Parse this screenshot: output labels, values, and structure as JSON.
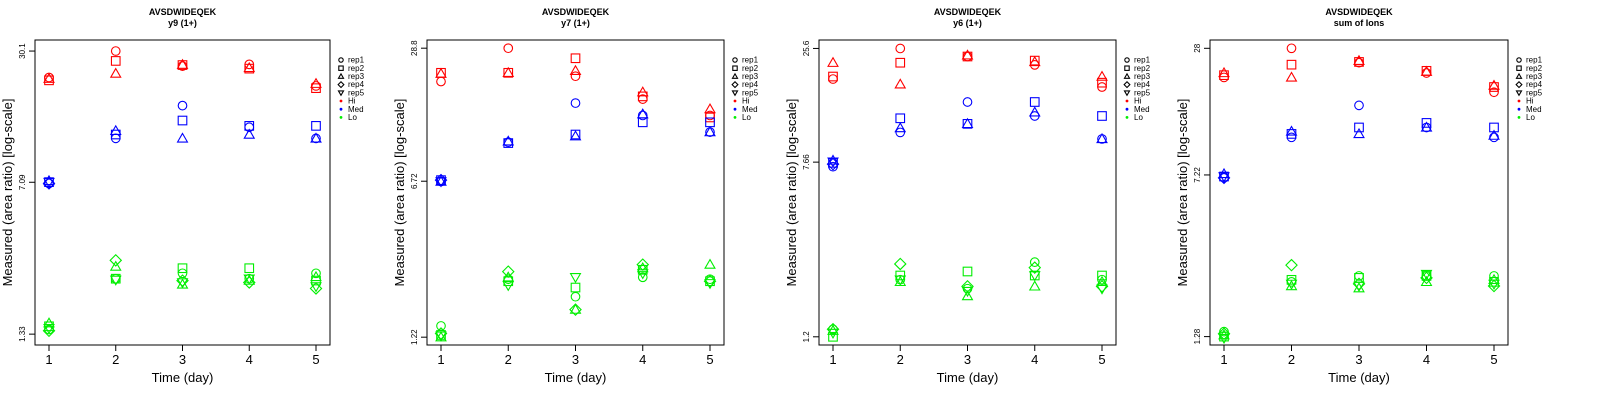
{
  "legend_entries": [
    {
      "label": "rep1",
      "symbol": "circle"
    },
    {
      "label": "rep2",
      "symbol": "square"
    },
    {
      "label": "rep3",
      "symbol": "triangle"
    },
    {
      "label": "rep4",
      "symbol": "diamond"
    },
    {
      "label": "rep5",
      "symbol": "triangle-down"
    },
    {
      "label": "Hi",
      "symbol": "dot",
      "color": "#ff0000"
    },
    {
      "label": "Med",
      "symbol": "dot",
      "color": "#0000ff"
    },
    {
      "label": "Lo",
      "symbol": "dot",
      "color": "#00ee00"
    }
  ],
  "colors": {
    "Hi": "#ff0000",
    "Med": "#0000ff",
    "Lo": "#00ee00",
    "axis": "#000000"
  },
  "chart_data": [
    {
      "type": "scatter",
      "title": "AVSDWIDEQEK",
      "subtitle": "y9 (1+)",
      "xlabel": "Time (day)",
      "ylabel": "Measured (area ratio) [log-scale]",
      "x_ticks": [
        "1",
        "2",
        "3",
        "4",
        "5"
      ],
      "y_ticks": [
        {
          "value": 1.33,
          "label": "1.33"
        },
        {
          "value": 7.09,
          "label": "7.09"
        },
        {
          "value": 30.1,
          "label": "30.1"
        }
      ],
      "ylim": [
        1.18,
        34
      ],
      "log_y": true,
      "legend_position": "right",
      "series": [
        {
          "name": "Hi",
          "values": [
            [
              22.5,
              21.8,
              22.2,
              null,
              null
            ],
            [
              30.1,
              27.0,
              23.5,
              null,
              null
            ],
            [
              25.5,
              25.8,
              25.9,
              null,
              null
            ],
            [
              26.0,
              24.8,
              25.0,
              null,
              null
            ],
            [
              20.5,
              20.0,
              21.0,
              null,
              null
            ]
          ]
        },
        {
          "name": "Med",
          "values": [
            [
              7.0,
              7.1,
              7.2,
              7.0,
              7.1
            ],
            [
              11.5,
              12.0,
              12.5,
              null,
              null
            ],
            [
              16.5,
              14.0,
              11.5,
              null,
              null
            ],
            [
              13.0,
              13.2,
              12.0,
              null,
              null
            ],
            [
              11.5,
              13.2,
              11.5,
              null,
              null
            ]
          ]
        },
        {
          "name": "Lo",
          "values": [
            [
              1.4,
              1.45,
              1.5,
              1.38,
              1.42
            ],
            [
              2.45,
              2.45,
              2.8,
              3.0,
              2.42
            ],
            [
              2.6,
              2.75,
              2.3,
              2.4,
              2.35
            ],
            [
              2.45,
              2.75,
              2.4,
              2.35,
              2.45
            ],
            [
              2.6,
              2.4,
              2.5,
              2.2,
              2.25
            ]
          ]
        }
      ]
    },
    {
      "type": "scatter",
      "title": "AVSDWIDEQEK",
      "subtitle": "y7 (1+)",
      "xlabel": "Time (day)",
      "ylabel": "Measured (area ratio) [log-scale]",
      "x_ticks": [
        "1",
        "2",
        "3",
        "4",
        "5"
      ],
      "y_ticks": [
        {
          "value": 1.22,
          "label": "1.22"
        },
        {
          "value": 6.72,
          "label": "6.72"
        },
        {
          "value": 28.8,
          "label": "28.8"
        }
      ],
      "ylim": [
        1.12,
        31.5
      ],
      "log_y": true,
      "legend_position": "right",
      "series": [
        {
          "name": "Hi",
          "values": [
            [
              20.0,
              22.0,
              21.8,
              null,
              null
            ],
            [
              28.8,
              22.0,
              22.0,
              null,
              null
            ],
            [
              21.2,
              25.8,
              22.5,
              null,
              null
            ],
            [
              16.5,
              17.0,
              17.8,
              null,
              null
            ],
            [
              13.8,
              13.5,
              14.8,
              null,
              null
            ]
          ]
        },
        {
          "name": "Med",
          "values": [
            [
              6.7,
              6.8,
              6.7,
              6.8,
              6.7
            ],
            [
              10.3,
              10.2,
              10.4,
              null,
              null
            ],
            [
              15.8,
              11.2,
              11.0,
              null,
              null
            ],
            [
              13.8,
              12.8,
              14.0,
              null,
              null
            ],
            [
              11.5,
              12.8,
              11.5,
              null,
              null
            ]
          ]
        },
        {
          "name": "Lo",
          "values": [
            [
              1.38,
              1.25,
              1.22,
              1.27,
              1.24
            ],
            [
              2.3,
              2.25,
              2.35,
              2.5,
              2.15
            ],
            [
              1.9,
              2.1,
              1.65,
              1.65,
              2.35
            ],
            [
              2.35,
              2.55,
              2.6,
              2.7,
              2.45
            ],
            [
              2.3,
              2.25,
              2.7,
              2.25,
              2.2
            ]
          ]
        }
      ]
    },
    {
      "type": "scatter",
      "title": "AVSDWIDEQEK",
      "subtitle": "y6 (1+)",
      "xlabel": "Time (day)",
      "ylabel": "Measured (area ratio) [log-scale]",
      "x_ticks": [
        "1",
        "2",
        "3",
        "4",
        "5"
      ],
      "y_ticks": [
        {
          "value": 1.2,
          "label": "1.2"
        },
        {
          "value": 7.66,
          "label": "7.66"
        },
        {
          "value": 25.6,
          "label": "25.6"
        }
      ],
      "ylim": [
        1.1,
        28
      ],
      "log_y": true,
      "legend_position": "right",
      "series": [
        {
          "name": "Hi",
          "values": [
            [
              18.5,
              19.0,
              22.0,
              null,
              null
            ],
            [
              25.6,
              22.0,
              17.5,
              null,
              null
            ],
            [
              23.5,
              23.5,
              23.8,
              null,
              null
            ],
            [
              21.5,
              22.5,
              22.2,
              null,
              null
            ],
            [
              17.0,
              17.8,
              19.0,
              null,
              null
            ]
          ]
        },
        {
          "name": "Med",
          "values": [
            [
              7.3,
              7.6,
              7.8,
              7.5,
              7.7
            ],
            [
              10.5,
              12.2,
              11.0,
              null,
              null
            ],
            [
              14.5,
              11.5,
              11.5,
              null,
              null
            ],
            [
              12.5,
              14.5,
              13.0,
              null,
              null
            ],
            [
              9.8,
              12.5,
              9.8,
              null,
              null
            ]
          ]
        },
        {
          "name": "Lo",
          "values": [
            [
              1.3,
              1.2,
              1.28,
              1.3,
              1.25
            ],
            [
              2.2,
              2.3,
              2.15,
              2.6,
              2.2
            ],
            [
              2.0,
              2.4,
              1.85,
              2.05,
              1.95
            ],
            [
              2.65,
              2.3,
              2.05,
              2.5,
              2.3
            ],
            [
              2.2,
              2.3,
              2.15,
              2.05,
              2.0
            ]
          ]
        }
      ]
    },
    {
      "type": "scatter",
      "title": "AVSDWIDEQEK",
      "subtitle": "sum of Ions",
      "xlabel": "Time (day)",
      "ylabel": "Measured (area ratio) [log-scale]",
      "x_ticks": [
        "1",
        "2",
        "3",
        "4",
        "5"
      ],
      "y_ticks": [
        {
          "value": 1.28,
          "label": "1.28"
        },
        {
          "value": 7.22,
          "label": "7.22"
        },
        {
          "value": 28,
          "label": "28"
        }
      ],
      "ylim": [
        1.17,
        30.6
      ],
      "log_y": true,
      "legend_position": "right",
      "series": [
        {
          "name": "Hi",
          "values": [
            [
              20.5,
              21.0,
              21.5,
              null,
              null
            ],
            [
              28.0,
              23.5,
              20.5,
              null,
              null
            ],
            [
              24.0,
              24.2,
              24.5,
              null,
              null
            ],
            [
              21.5,
              22.0,
              21.8,
              null,
              null
            ],
            [
              17.5,
              18.5,
              18.8,
              null,
              null
            ]
          ]
        },
        {
          "name": "Med",
          "values": [
            [
              7.0,
              7.1,
              7.3,
              7.0,
              7.1
            ],
            [
              10.8,
              11.2,
              11.5,
              null,
              null
            ],
            [
              15.2,
              12.0,
              11.2,
              null,
              null
            ],
            [
              12.0,
              12.6,
              12.0,
              null,
              null
            ],
            [
              10.8,
              12.0,
              11.0,
              null,
              null
            ]
          ]
        },
        {
          "name": "Lo",
          "values": [
            [
              1.35,
              1.28,
              1.3,
              1.32,
              1.26
            ],
            [
              2.3,
              2.35,
              2.2,
              2.75,
              2.25
            ],
            [
              2.45,
              2.4,
              2.15,
              2.25,
              2.2
            ],
            [
              2.45,
              2.45,
              2.3,
              2.4,
              2.5
            ],
            [
              2.45,
              2.3,
              2.35,
              2.2,
              2.25
            ]
          ]
        }
      ]
    }
  ]
}
